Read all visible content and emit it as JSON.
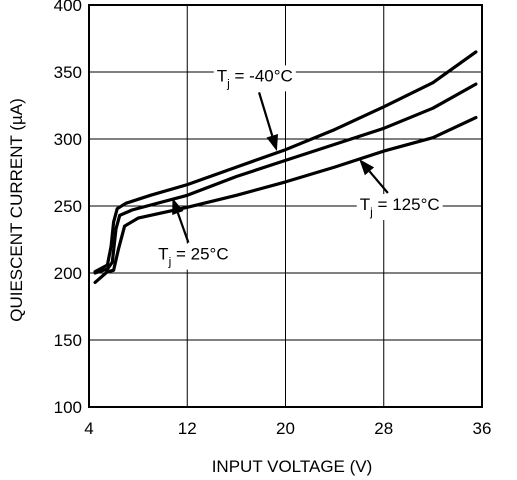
{
  "chart_data": {
    "type": "line",
    "xlabel": "INPUT VOLTAGE (V)",
    "ylabel": "QUIESCENT CURRENT (µA)",
    "xlim": [
      4,
      36
    ],
    "ylim": [
      100,
      400
    ],
    "x_ticks": [
      "4",
      "12",
      "20",
      "28",
      "36"
    ],
    "y_ticks": [
      "100",
      "150",
      "200",
      "250",
      "300",
      "350",
      "400"
    ],
    "grid": true,
    "series": [
      {
        "name": "Tj = -40°C",
        "label_main": "T",
        "label_sub": "j",
        "label_rest": " = -40°C",
        "x": [
          4.5,
          5.5,
          5.8,
          6.0,
          6.3,
          7.0,
          9.0,
          12.0,
          16.0,
          20.0,
          24.0,
          28.0,
          32.0,
          35.5
        ],
        "y": [
          201,
          206,
          220,
          238,
          248,
          252,
          258,
          266,
          279,
          292,
          307,
          324,
          342,
          365
        ]
      },
      {
        "name": "Tj = 25°C",
        "label_main": "T",
        "label_sub": "j",
        "label_rest": " = 25°C",
        "x": [
          4.5,
          5.5,
          5.9,
          6.2,
          6.5,
          7.5,
          12.0,
          16.0,
          20.0,
          24.0,
          28.0,
          32.0,
          35.5
        ],
        "y": [
          200,
          203,
          208,
          233,
          243,
          247,
          258,
          272,
          284,
          296,
          308,
          323,
          341
        ]
      },
      {
        "name": "Tj = 125°C",
        "label_main": "T",
        "label_sub": "j",
        "label_rest": " = 125°C",
        "x": [
          4.5,
          5.5,
          6.0,
          6.4,
          6.9,
          8.0,
          12.0,
          16.0,
          20.0,
          24.0,
          28.0,
          32.0,
          35.5
        ],
        "y": [
          193,
          201,
          202,
          218,
          235,
          241,
          249,
          258,
          268,
          279,
          291,
          301,
          316
        ]
      }
    ],
    "annotations": [
      {
        "series": 0,
        "text_x": 17.5,
        "text_y": 343,
        "arrow_to_x": 19.3,
        "arrow_to_y": 291
      },
      {
        "series": 1,
        "text_x": 12.5,
        "text_y": 210,
        "arrow_to_x": 10.8,
        "arrow_to_y": 256
      },
      {
        "series": 2,
        "text_x": 29.3,
        "text_y": 247,
        "arrow_to_x": 26.0,
        "arrow_to_y": 285
      }
    ],
    "colors": {
      "line": "#000000",
      "grid": "#000000",
      "background": "#ffffff"
    }
  }
}
